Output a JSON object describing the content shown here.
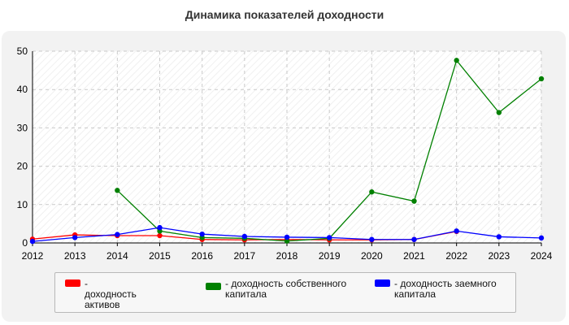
{
  "title": "Динамика показателей доходности",
  "chart_data": {
    "type": "line",
    "categories": [
      "2012",
      "2013",
      "2014",
      "2015",
      "2016",
      "2017",
      "2018",
      "2019",
      "2020",
      "2021",
      "2022",
      "2023",
      "2024"
    ],
    "ylim": [
      0,
      50
    ],
    "yticks": [
      "0",
      "10",
      "20",
      "30",
      "40",
      "50"
    ],
    "grid": true,
    "legend_position": "bottom",
    "series": [
      {
        "name": "- доходность активов",
        "color": "#ff0000",
        "values": [
          1.0,
          2.1,
          1.9,
          1.9,
          0.9,
          0.8,
          0.9,
          0.8,
          0.8,
          0.9,
          3.0,
          null,
          null
        ]
      },
      {
        "name": "- доходность собственного капитала",
        "color": "#008000",
        "values": [
          null,
          null,
          13.7,
          3.1,
          1.4,
          1.2,
          0.5,
          1.2,
          13.3,
          10.9,
          47.6,
          34.0,
          42.8
        ]
      },
      {
        "name": "- доходность заемного капитала",
        "color": "#0000ff",
        "values": [
          0.4,
          1.4,
          2.2,
          4.0,
          2.3,
          1.7,
          1.5,
          1.4,
          0.9,
          0.9,
          3.1,
          1.6,
          1.3
        ]
      }
    ]
  }
}
